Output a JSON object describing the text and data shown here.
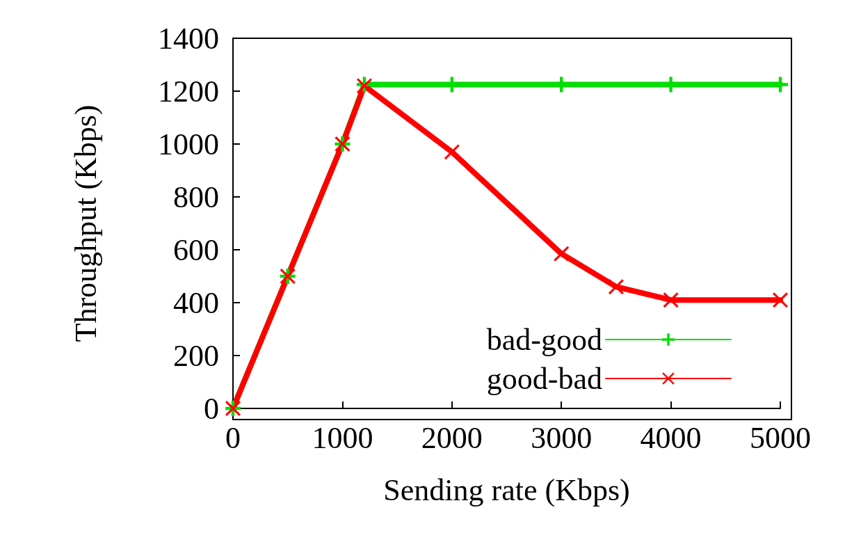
{
  "chart_data": {
    "type": "line",
    "xlabel": "Sending rate (Kbps)",
    "ylabel": "Throughput (Kbps)",
    "xlim": [
      0,
      5000
    ],
    "xticks": [
      0,
      1000,
      2000,
      3000,
      4000,
      5000
    ],
    "ylim": [
      0,
      1400
    ],
    "yticks": [
      0,
      200,
      400,
      600,
      800,
      1000,
      1200,
      1400
    ],
    "grid": false,
    "legend": "bottom right",
    "line_style": "solid",
    "series": [
      {
        "name": "bad-good",
        "color": "#00dd00",
        "marker": "plus",
        "x": [
          0,
          500,
          1000,
          1200,
          2000,
          3000,
          4000,
          5000
        ],
        "values": [
          0,
          500,
          1000,
          1225,
          1225,
          1225,
          1225,
          1225
        ]
      },
      {
        "name": "good-bad",
        "color": "#ff0000",
        "marker": "cross",
        "x": [
          0,
          500,
          1000,
          1200,
          2000,
          3000,
          3500,
          4000,
          5000
        ],
        "values": [
          0,
          500,
          1000,
          1220,
          970,
          585,
          460,
          410,
          410
        ]
      }
    ]
  }
}
